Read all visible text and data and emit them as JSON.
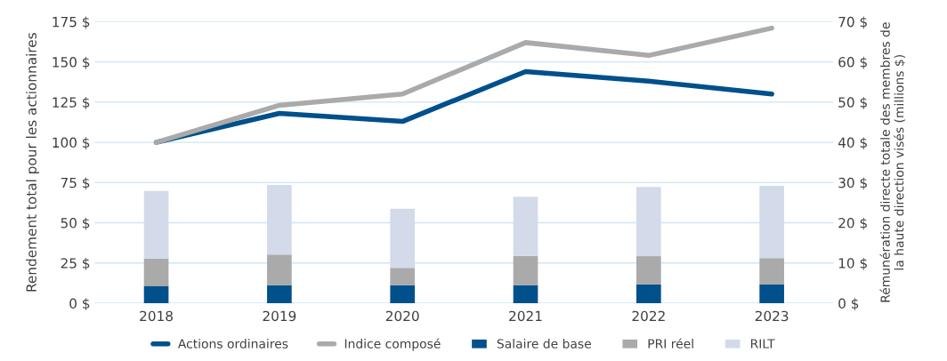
{
  "chart_data": {
    "type": "bar",
    "stacked": true,
    "categories": [
      "2018",
      "2019",
      "2020",
      "2021",
      "2022",
      "2023"
    ],
    "ylabel": "Rendement total pour les actionnaires",
    "y2label": "Rémunération directe totale des membres de la haute direction visés (millions $)",
    "ylim": [
      0,
      175
    ],
    "yticks": [
      {
        "value": 0,
        "label": "0 $"
      },
      {
        "value": 25,
        "label": "25 $"
      },
      {
        "value": 50,
        "label": "50 $"
      },
      {
        "value": 75,
        "label": "75 $"
      },
      {
        "value": 100,
        "label": "100 $"
      },
      {
        "value": 125,
        "label": "125 $"
      },
      {
        "value": 150,
        "label": "150 $"
      },
      {
        "value": 175,
        "label": "175 $"
      }
    ],
    "y2lim": [
      0,
      70
    ],
    "y2ticks": [
      {
        "value": 0,
        "label": "0 $"
      },
      {
        "value": 10,
        "label": "10 $"
      },
      {
        "value": 20,
        "label": "20 $"
      },
      {
        "value": 30,
        "label": "30 $"
      },
      {
        "value": 40,
        "label": "40 $"
      },
      {
        "value": 50,
        "label": "50 $"
      },
      {
        "value": 60,
        "label": "60 $"
      },
      {
        "value": 70,
        "label": "70 $"
      }
    ],
    "grid": "y",
    "legend": "bottom",
    "series": [
      {
        "name": "Actions ordinaires",
        "type": "line",
        "color": "#00508c",
        "values": [
          100,
          118,
          113,
          144,
          138,
          130
        ]
      },
      {
        "name": "Indice composé",
        "type": "line",
        "color": "#a9aaa9",
        "values": [
          100,
          123,
          130,
          162,
          154,
          171
        ]
      },
      {
        "name": "Salaire de base",
        "axis": "y2",
        "color": "#00508c",
        "values": [
          4.3,
          4.5,
          4.5,
          4.5,
          4.7,
          4.7
        ]
      },
      {
        "name": "PRI réel",
        "axis": "y2",
        "color": "#a9aaa9",
        "values": [
          6.8,
          7.6,
          4.3,
          7.3,
          7.0,
          6.5
        ]
      },
      {
        "name": "RILT",
        "axis": "y2",
        "color": "#d3dae9",
        "values": [
          16.8,
          17.3,
          14.7,
          14.7,
          17.2,
          18.0
        ]
      }
    ]
  }
}
